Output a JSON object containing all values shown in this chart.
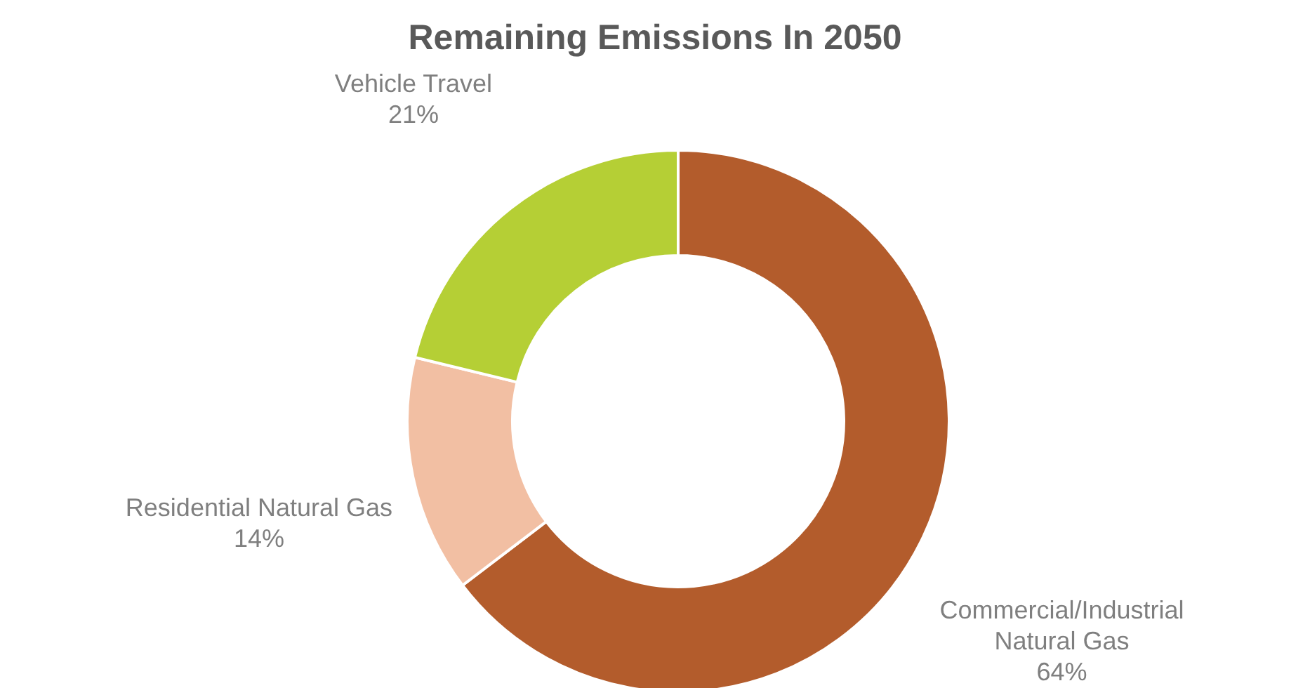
{
  "chart_data": {
    "type": "donut",
    "title": "Remaining Emissions In 2050",
    "categories": [
      "Commercial/Industrial Natural Gas",
      "Residential Natural Gas",
      "Vehicle Travel"
    ],
    "values": [
      64,
      14,
      21
    ],
    "colors": [
      "#b35c2c",
      "#f2bfa3",
      "#b5cf35"
    ],
    "value_labels": [
      "64%",
      "14%",
      "21%"
    ],
    "legend": false
  }
}
